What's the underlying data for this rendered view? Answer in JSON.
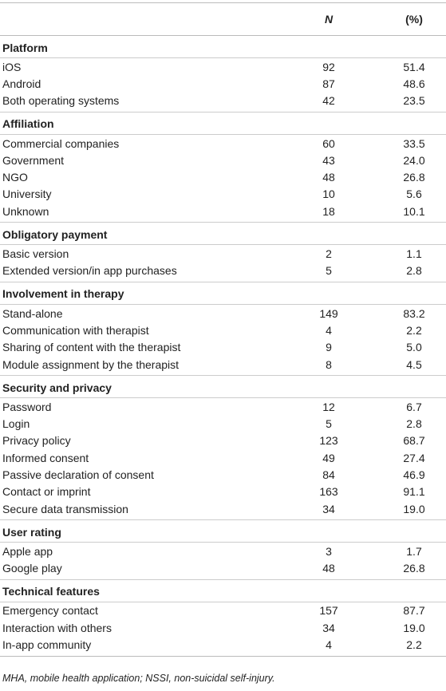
{
  "table": {
    "columns": [
      "N",
      "(%)"
    ],
    "sections": [
      {
        "title": "Platform",
        "rows": [
          [
            "iOS",
            "92",
            "51.4"
          ],
          [
            "Android",
            "87",
            "48.6"
          ],
          [
            "Both operating systems",
            "42",
            "23.5"
          ]
        ]
      },
      {
        "title": "Affiliation",
        "rows": [
          [
            "Commercial companies",
            "60",
            "33.5"
          ],
          [
            "Government",
            "43",
            "24.0"
          ],
          [
            "NGO",
            "48",
            "26.8"
          ],
          [
            "University",
            "10",
            "5.6"
          ],
          [
            "Unknown",
            "18",
            "10.1"
          ]
        ]
      },
      {
        "title": "Obligatory payment",
        "rows": [
          [
            "Basic version",
            "2",
            "1.1"
          ],
          [
            "Extended version/in app purchases",
            "5",
            "2.8"
          ]
        ]
      },
      {
        "title": "Involvement in therapy",
        "rows": [
          [
            "Stand-alone",
            "149",
            "83.2"
          ],
          [
            "Communication with therapist",
            "4",
            "2.2"
          ],
          [
            "Sharing of content with the therapist",
            "9",
            "5.0"
          ],
          [
            "Module assignment by the therapist",
            "8",
            "4.5"
          ]
        ]
      },
      {
        "title": "Security and privacy",
        "rows": [
          [
            "Password",
            "12",
            "6.7"
          ],
          [
            "Login",
            "5",
            "2.8"
          ],
          [
            "Privacy policy",
            "123",
            "68.7"
          ],
          [
            "Informed consent",
            "49",
            "27.4"
          ],
          [
            "Passive declaration of consent",
            "84",
            "46.9"
          ],
          [
            "Contact or imprint",
            "163",
            "91.1"
          ],
          [
            "Secure data transmission",
            "34",
            "19.0"
          ]
        ]
      },
      {
        "title": "User rating",
        "rows": [
          [
            "Apple app",
            "3",
            "1.7"
          ],
          [
            "Google play",
            "48",
            "26.8"
          ]
        ]
      },
      {
        "title": "Technical features",
        "rows": [
          [
            "Emergency contact",
            "157",
            "87.7"
          ],
          [
            "Interaction with others",
            "34",
            "19.0"
          ],
          [
            "In-app community",
            "4",
            "2.2"
          ]
        ]
      }
    ]
  },
  "footnote": "MHA, mobile health application; NSSI, non-suicidal self-injury."
}
